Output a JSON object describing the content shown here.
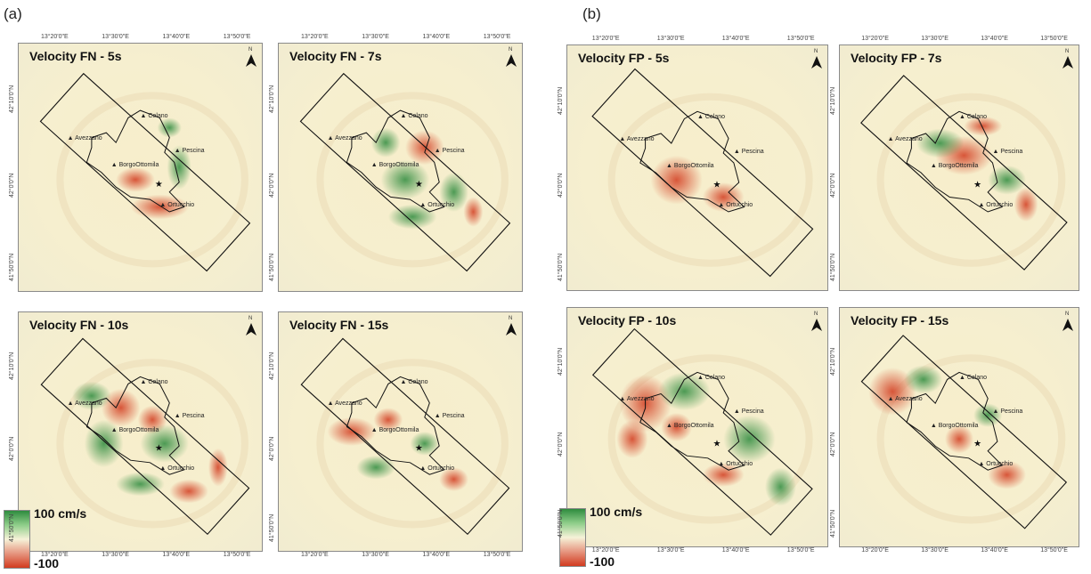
{
  "figure": {
    "part_labels": {
      "a": "(a)",
      "b": "(b)"
    }
  },
  "panels": [
    {
      "id": "fn5",
      "title": "Velocity FN - 5s"
    },
    {
      "id": "fn7",
      "title": "Velocity FN - 7s"
    },
    {
      "id": "fp5",
      "title": "Velocity FP - 5s"
    },
    {
      "id": "fp7",
      "title": "Velocity FP - 7s"
    },
    {
      "id": "fn10",
      "title": "Velocity FN - 10s"
    },
    {
      "id": "fn15",
      "title": "Velocity FN - 15s"
    },
    {
      "id": "fp10",
      "title": "Velocity FP - 10s"
    },
    {
      "id": "fp15",
      "title": "Velocity FP - 15s"
    }
  ],
  "places": {
    "celano": "Celano",
    "avezzano": "Avezzano",
    "pescina": "Pescina",
    "borgo": "BorgoOttomila",
    "ortucchio": "Ortucchio"
  },
  "ticks": {
    "lon": [
      "13°20'0\"E",
      "13°30'0\"E",
      "13°40'0\"E",
      "13°50'0\"E"
    ],
    "lat": [
      "42°10'0\"N",
      "42°0'0\"N",
      "41°50'0\"N"
    ]
  },
  "north_label": "N",
  "legend": {
    "max_label": "100 cm/s",
    "min_label": "-100"
  },
  "colors": {
    "positive": "#2e8b3e",
    "negative": "#d23b1f",
    "neutral": "#f6efcf"
  }
}
